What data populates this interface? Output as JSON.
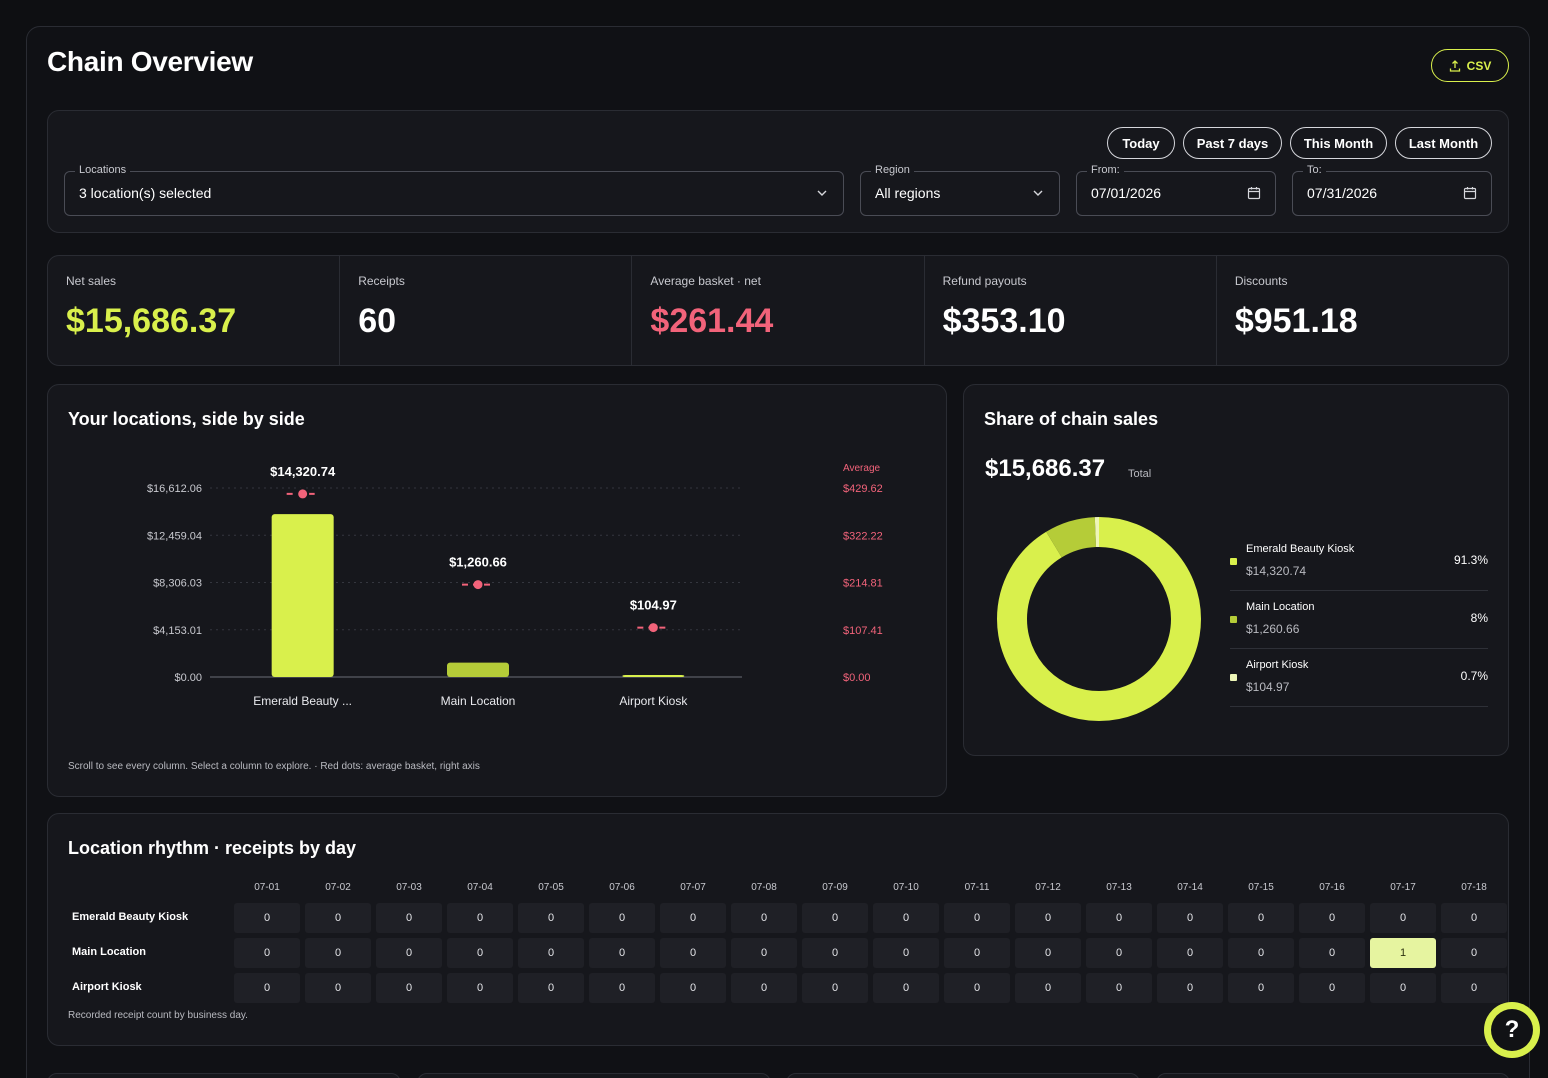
{
  "page": {
    "title": "Chain Overview",
    "csv_label": "CSV"
  },
  "filters": {
    "quick_ranges": [
      "Today",
      "Past 7 days",
      "This Month",
      "Last Month"
    ],
    "locations": {
      "label": "Locations",
      "value": "3 location(s) selected"
    },
    "region": {
      "label": "Region",
      "value": "All regions"
    },
    "from": {
      "label": "From:",
      "value": "07/01/2026"
    },
    "to": {
      "label": "To:",
      "value": "07/31/2026"
    }
  },
  "kpis": [
    {
      "label": "Net sales",
      "value": "$15,686.37",
      "color": "#d9f04c"
    },
    {
      "label": "Receipts",
      "value": "60",
      "color": "#ffffff"
    },
    {
      "label": "Average basket · net",
      "value": "$261.44",
      "color": "#f2637a"
    },
    {
      "label": "Refund payouts",
      "value": "$353.10",
      "color": "#ffffff"
    },
    {
      "label": "Discounts",
      "value": "$951.18",
      "color": "#ffffff"
    }
  ],
  "locations_chart": {
    "title": "Your locations, side by side",
    "note": "Scroll to see every column. Select a column to explore. · Red dots: average basket, right axis",
    "accent": "#d9f04c",
    "avg_color": "#f2637a"
  },
  "share": {
    "title": "Share of chain sales",
    "total": "$15,686.37",
    "total_label": "Total",
    "items": [
      {
        "name": "Emerald Beauty Kiosk",
        "value": "$14,320.74",
        "pct": "91.3%",
        "color": "#d9f04c"
      },
      {
        "name": "Main Location",
        "value": "$1,260.66",
        "pct": "8%",
        "color": "#b5cc38"
      },
      {
        "name": "Airport Kiosk",
        "value": "$104.97",
        "pct": "0.7%",
        "color": "#eef6b8"
      }
    ]
  },
  "rhythm": {
    "title": "Location rhythm · receipts by day",
    "note": "Recorded receipt count by business day.",
    "days": [
      "07-01",
      "07-02",
      "07-03",
      "07-04",
      "07-05",
      "07-06",
      "07-07",
      "07-08",
      "07-09",
      "07-10",
      "07-11",
      "07-12",
      "07-13",
      "07-14",
      "07-15",
      "07-16",
      "07-17",
      "07-18"
    ],
    "rows": [
      {
        "name": "Emerald Beauty Kiosk",
        "counts": [
          0,
          0,
          0,
          0,
          0,
          0,
          0,
          0,
          0,
          0,
          0,
          0,
          0,
          0,
          0,
          0,
          0,
          0
        ]
      },
      {
        "name": "Main Location",
        "counts": [
          0,
          0,
          0,
          0,
          0,
          0,
          0,
          0,
          0,
          0,
          0,
          0,
          0,
          0,
          0,
          0,
          1,
          0
        ]
      },
      {
        "name": "Airport Kiosk",
        "counts": [
          0,
          0,
          0,
          0,
          0,
          0,
          0,
          0,
          0,
          0,
          0,
          0,
          0,
          0,
          0,
          0,
          0,
          0
        ]
      }
    ]
  },
  "help": {
    "label": "?"
  },
  "chart_data": [
    {
      "type": "bar",
      "title": "Your locations, side by side",
      "categories": [
        "Emerald Beauty ...",
        "Main Location",
        "Airport Kiosk"
      ],
      "series": [
        {
          "name": "",
          "values": [
            14320.74,
            1260.66,
            104.97
          ],
          "labels": [
            "$14,320.74",
            "$1,260.66",
            "$104.97"
          ]
        },
        {
          "name": "Average",
          "values": [
            416.2,
            210.1,
            112.3
          ],
          "axis": "right"
        }
      ],
      "y_ticks": [
        "$0.00",
        "$4,153.01",
        "$8,306.03",
        "$12,459.04",
        "$16,612.06"
      ],
      "ylim": [
        0,
        16612.06
      ],
      "y2_label": "Average",
      "y2_ticks": [
        "$0.00",
        "$107.41",
        "$214.81",
        "$322.22",
        "$429.62"
      ],
      "y2lim": [
        0,
        429.62
      ],
      "grid": true
    },
    {
      "type": "pie",
      "title": "Share of chain sales",
      "categories": [
        "Emerald Beauty Kiosk",
        "Main Location",
        "Airport Kiosk"
      ],
      "values": [
        91.3,
        8,
        0.7
      ],
      "donut": true
    }
  ]
}
